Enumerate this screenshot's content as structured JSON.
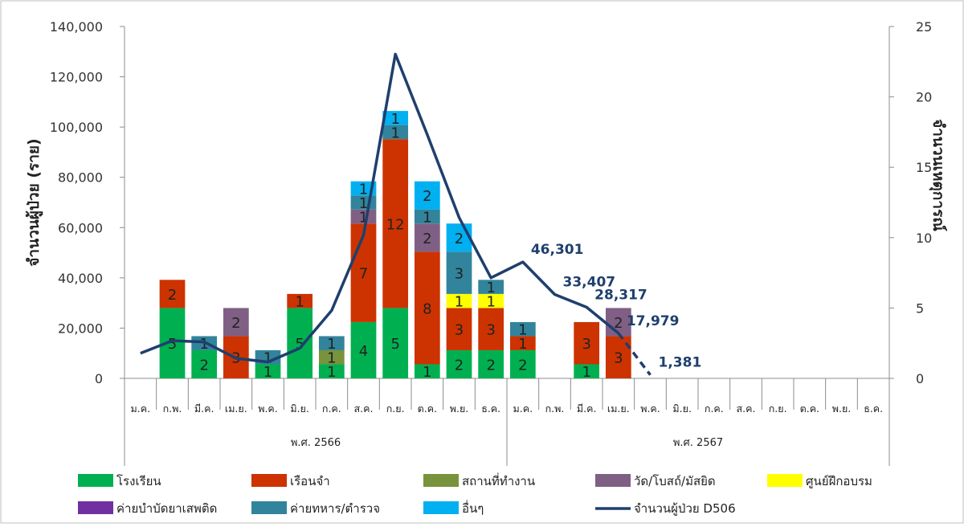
{
  "chart_data": {
    "type": "bar",
    "y_left_label": "จำนวนผู้ป่วย (ราย)",
    "y_right_label": "จำนวนเหตุการณ์",
    "ylim_left": [
      0,
      140000
    ],
    "ylim_right": [
      0,
      25
    ],
    "left_ticks": [
      "0",
      "20,000",
      "40,000",
      "60,000",
      "80,000",
      "100,000",
      "120,000",
      "140,000"
    ],
    "right_ticks": [
      "0",
      "5",
      "10",
      "15",
      "20",
      "25"
    ],
    "months": [
      "ม.ค.",
      "ก.พ.",
      "มี.ค.",
      "เม.ย.",
      "พ.ค.",
      "มิ.ย.",
      "ก.ค.",
      "ส.ค.",
      "ก.ย.",
      "ต.ค.",
      "พ.ย.",
      "ธ.ค.",
      "ม.ค.",
      "ก.พ.",
      "มี.ค.",
      "เม.ย.",
      "พ.ค.",
      "มิ.ย.",
      "ก.ค.",
      "ส.ค.",
      "ก.ย.",
      "ต.ค.",
      "พ.ย.",
      "ธ.ค."
    ],
    "years": [
      "พ.ศ. 2566",
      "พ.ศ. 2567"
    ],
    "grid": false,
    "legend_position": "bottom",
    "series": [
      {
        "name": "โรงเรียน",
        "color": "#00b050",
        "values": [
          0,
          5,
          2,
          0,
          1,
          5,
          1,
          4,
          5,
          1,
          2,
          2,
          2,
          0,
          1,
          0,
          0,
          0,
          0,
          0,
          0,
          0,
          0,
          0
        ]
      },
      {
        "name": "เรือนจำ",
        "color": "#cc3300",
        "values": [
          0,
          2,
          0,
          3,
          0,
          1,
          0,
          7,
          12,
          8,
          3,
          3,
          1,
          0,
          3,
          3,
          0,
          0,
          0,
          0,
          0,
          0,
          0,
          0
        ]
      },
      {
        "name": "สถานที่ทำงาน",
        "color": "#77933c",
        "values": [
          0,
          0,
          0,
          0,
          0,
          0,
          1,
          0,
          0,
          0,
          0,
          0,
          0,
          0,
          0,
          0,
          0,
          0,
          0,
          0,
          0,
          0,
          0,
          0
        ]
      },
      {
        "name": "วัด/โบสถ์/มัสยิด",
        "color": "#7f6084",
        "values": [
          0,
          0,
          0,
          2,
          0,
          0,
          0,
          1,
          0,
          2,
          0,
          0,
          0,
          0,
          0,
          2,
          0,
          0,
          0,
          0,
          0,
          0,
          0,
          0
        ]
      },
      {
        "name": "ศูนย์ฝึกอบรม",
        "color": "#ffff00",
        "values": [
          0,
          0,
          0,
          0,
          0,
          0,
          0,
          0,
          0,
          0,
          1,
          1,
          0,
          0,
          0,
          0,
          0,
          0,
          0,
          0,
          0,
          0,
          0,
          0
        ]
      },
      {
        "name": "ค่ายบำบัดยาเสพติด",
        "color": "#7030a0",
        "values": [
          0,
          0,
          0,
          0,
          0,
          0,
          0,
          0,
          0,
          0,
          0,
          0,
          0,
          0,
          0,
          0,
          0,
          0,
          0,
          0,
          0,
          0,
          0,
          0
        ]
      },
      {
        "name": "ค่ายทหาร/ตำรวจ",
        "color": "#31849b",
        "values": [
          0,
          0,
          1,
          0,
          1,
          0,
          1,
          1,
          1,
          1,
          3,
          1,
          1,
          0,
          0,
          0,
          0,
          0,
          0,
          0,
          0,
          0,
          0,
          0
        ]
      },
      {
        "name": "อื่นๆ",
        "color": "#00b0f0",
        "values": [
          0,
          0,
          0,
          0,
          0,
          0,
          0,
          1,
          1,
          2,
          2,
          0,
          0,
          0,
          0,
          0,
          0,
          0,
          0,
          0,
          0,
          0,
          0,
          0
        ]
      }
    ],
    "line": {
      "name": "จำนวนผู้ป่วย D506",
      "color": "#1f3f6e",
      "solid_values": [
        10000,
        15000,
        14500,
        8000,
        6500,
        12000,
        27000,
        57000,
        129000,
        97000,
        64000,
        40000,
        46301,
        33407,
        28317,
        17979
      ],
      "dashed_tail": [
        17979,
        1381
      ],
      "labels": [
        {
          "month_index": 12,
          "text": "46,301"
        },
        {
          "month_index": 13,
          "text": "33,407"
        },
        {
          "month_index": 14,
          "text": "28,317"
        },
        {
          "month_index": 15,
          "text": "17,979"
        },
        {
          "month_index": 16,
          "text": "1,381"
        }
      ]
    }
  }
}
